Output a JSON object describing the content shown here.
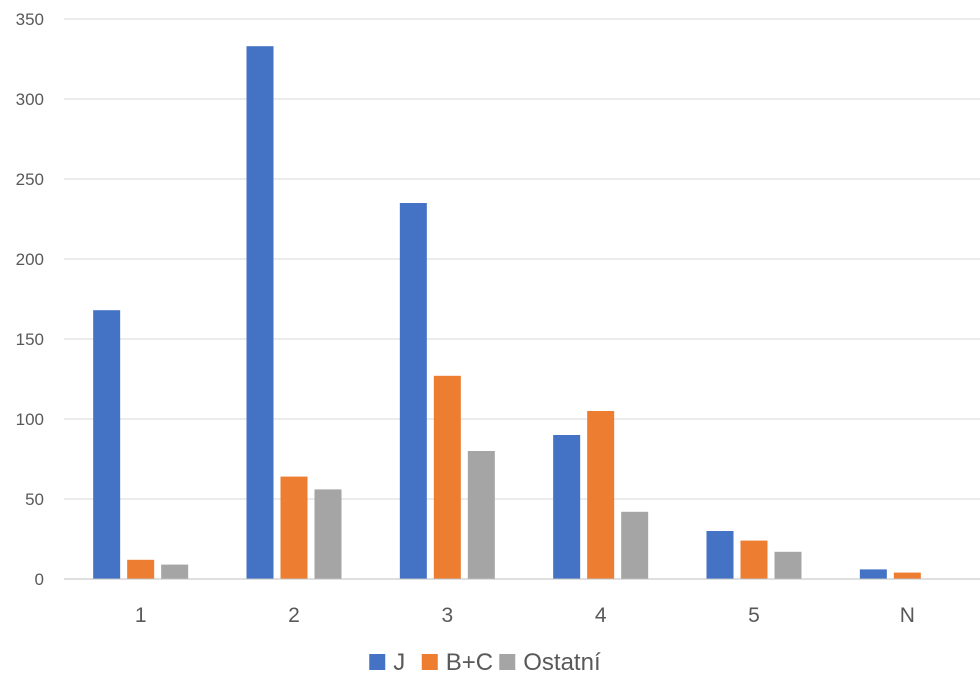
{
  "chart_data": {
    "type": "bar",
    "title": "",
    "xlabel": "",
    "ylabel": "",
    "categories": [
      "1",
      "2",
      "3",
      "4",
      "5",
      "N"
    ],
    "series": [
      {
        "name": "J",
        "color": "#4472C4",
        "values": [
          168,
          333,
          235,
          90,
          30,
          6
        ]
      },
      {
        "name": "B+C",
        "color": "#ED7D31",
        "values": [
          12,
          64,
          127,
          105,
          24,
          4
        ]
      },
      {
        "name": "Ostatní",
        "color": "#A5A5A5",
        "values": [
          9,
          56,
          80,
          42,
          17,
          0
        ]
      }
    ],
    "ylim": [
      0,
      350
    ],
    "yticks": [
      0,
      50,
      100,
      150,
      200,
      250,
      300,
      350
    ],
    "grid": true,
    "legend_position": "bottom"
  }
}
